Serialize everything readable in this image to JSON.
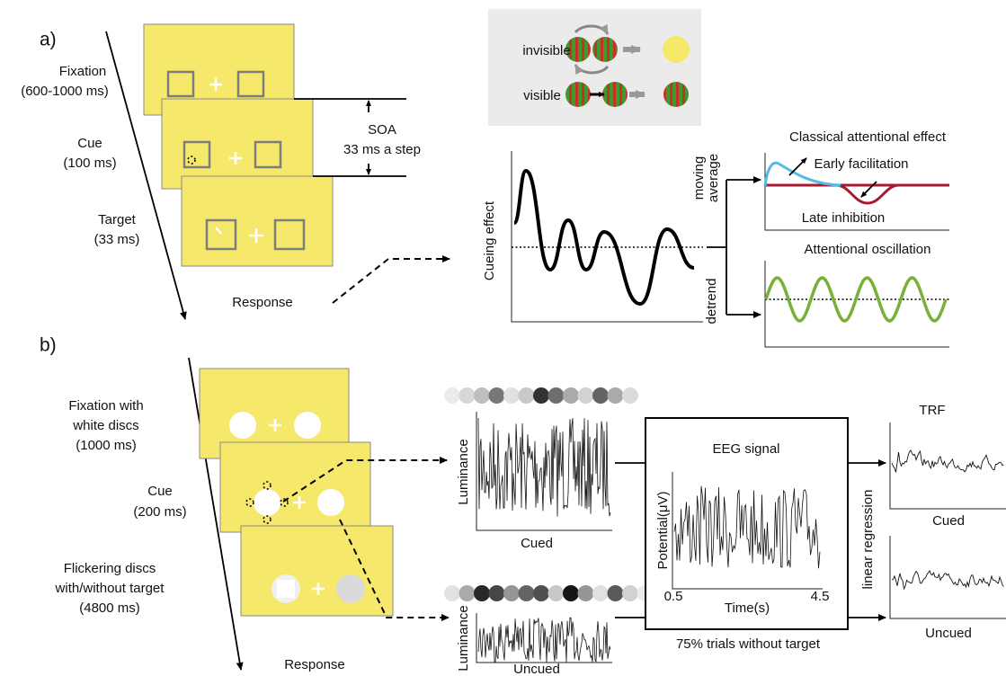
{
  "panel_a": {
    "label": "a)",
    "fixation": {
      "name": "Fixation",
      "time": "(600-1000 ms)"
    },
    "cue": {
      "name": "Cue",
      "time": "(100 ms)"
    },
    "target": {
      "name": "Target",
      "time": "(33 ms)"
    },
    "response": "Response",
    "soa": "SOA",
    "soa_step": "33 ms a step",
    "invisible": "invisible",
    "visible": "visible",
    "cueing_effect": "Cueing effect",
    "moving_average": [
      "moving",
      "average"
    ],
    "detrend": "detrend",
    "classical_title": "Classical attentional effect",
    "early": "Early facilitation",
    "late": "Late inhibition",
    "oscillation_title": "Attentional oscillation"
  },
  "panel_b": {
    "label": "b)",
    "fixation": [
      "Fixation with",
      "white discs",
      "(1000 ms)"
    ],
    "cue": [
      "Cue",
      "(200 ms)"
    ],
    "flicker": [
      "Flickering discs",
      "with/without target",
      "(4800 ms)"
    ],
    "response": "Response",
    "luminance_cued": "Luminance",
    "cued": "Cued",
    "luminance_uncued": "Luminance",
    "uncued": "Uncued",
    "eeg_title": "EEG signal",
    "eeg_ylabel": "Potential(μV)",
    "eeg_xlabel": "Time(s)",
    "eeg_xmin": "0.5",
    "eeg_xmax": "4.5",
    "eeg_note": "75% trials without target",
    "linear_regression": "linear regression",
    "trf_title": "TRF",
    "trf_cued": "Cued",
    "trf_uncued": "Uncued"
  }
}
